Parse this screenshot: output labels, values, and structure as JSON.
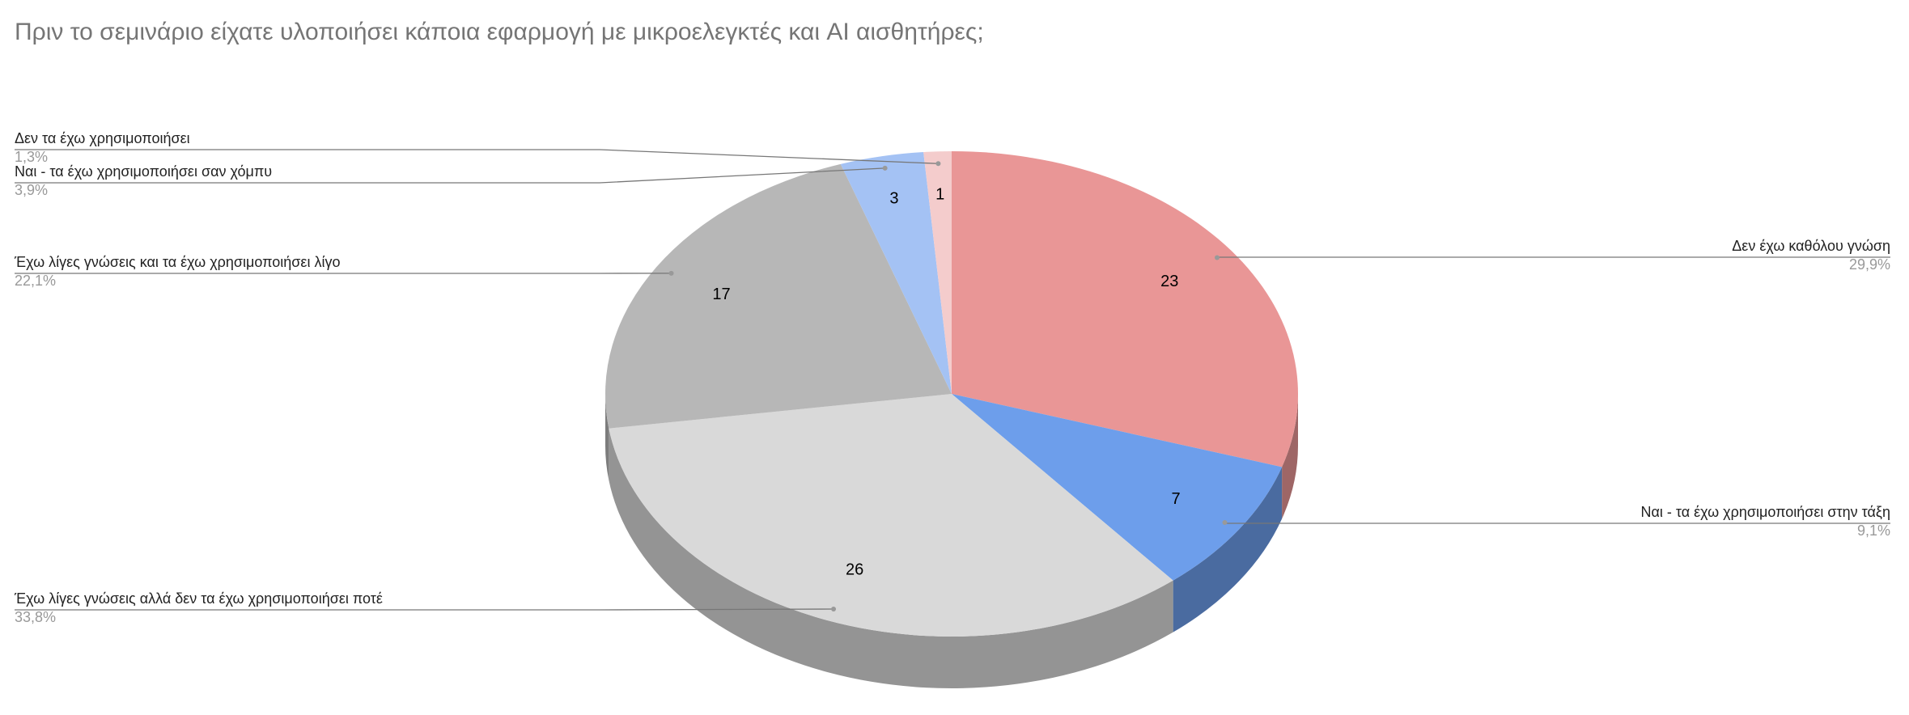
{
  "chart_data": {
    "type": "pie3d",
    "title": "Πριν το σεμινάριο είχατε υλοποιήσει κάποια εφαρμογή με μικροελεγκτές και AI αισθητήρες;",
    "categories": [
      "Δεν έχω καθόλου γνώση",
      "Ναι - τα έχω χρησιμοποιήσει στην τάξη",
      "Έχω λίγες γνώσεις αλλά δεν τα έχω χρησιμοποιήσει ποτέ",
      "Έχω λίγες γνώσεις και τα έχω χρησιμοποιήσει λίγο",
      "Ναι - τα έχω χρησιμοποιήσει σαν χόμπυ",
      "Δεν τα έχω χρησιμοποιήσει"
    ],
    "values": [
      23,
      7,
      26,
      17,
      3,
      1
    ],
    "percent_labels": [
      "29,9%",
      "9,1%",
      "33,8%",
      "22,1%",
      "3,9%",
      "1,3%"
    ],
    "colors": [
      "#e99696",
      "#6d9eeb",
      "#d9d9d9",
      "#b7b7b7",
      "#a4c2f4",
      "#f4cccc"
    ]
  }
}
